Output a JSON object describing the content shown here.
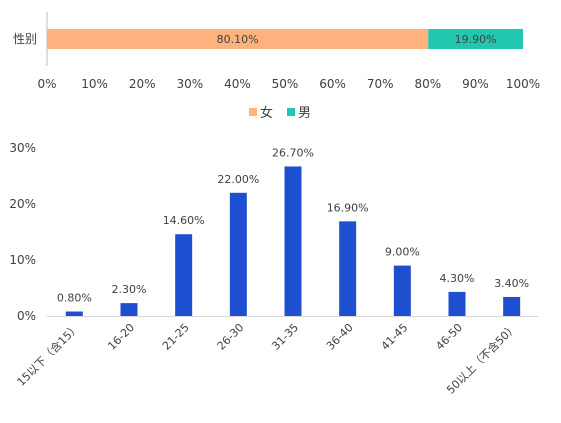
{
  "chart_data": [
    {
      "type": "bar",
      "orientation": "horizontal-stacked",
      "categories": [
        "性别"
      ],
      "series": [
        {
          "name": "女",
          "values": [
            80.1
          ],
          "label": "80.10%",
          "color": "#FFB27E"
        },
        {
          "name": "男",
          "values": [
            19.9
          ],
          "label": "19.90%",
          "color": "#23C7B0"
        }
      ],
      "xlim": [
        0,
        100
      ],
      "x_ticks": [
        "0%",
        "10%",
        "20%",
        "30%",
        "40%",
        "50%",
        "60%",
        "70%",
        "80%",
        "90%",
        "100%"
      ],
      "legend": {
        "position": "bottom",
        "items": [
          "女",
          "男"
        ]
      },
      "grid": false
    },
    {
      "type": "bar",
      "categories": [
        "15以下（含15）",
        "16-20",
        "21-25",
        "26-30",
        "31-35",
        "36-40",
        "41-45",
        "46-50",
        "50以上（不含50）"
      ],
      "values": [
        0.8,
        2.3,
        14.6,
        22.0,
        26.7,
        16.9,
        9.0,
        4.3,
        3.4
      ],
      "data_labels": [
        "0.80%",
        "2.30%",
        "14.60%",
        "22.00%",
        "26.70%",
        "16.90%",
        "9.00%",
        "4.30%",
        "3.40%"
      ],
      "ylim": [
        0,
        30
      ],
      "y_ticks": [
        "0%",
        "10%",
        "20%",
        "30%"
      ],
      "color": "#1E4FD0",
      "grid": false
    }
  ]
}
